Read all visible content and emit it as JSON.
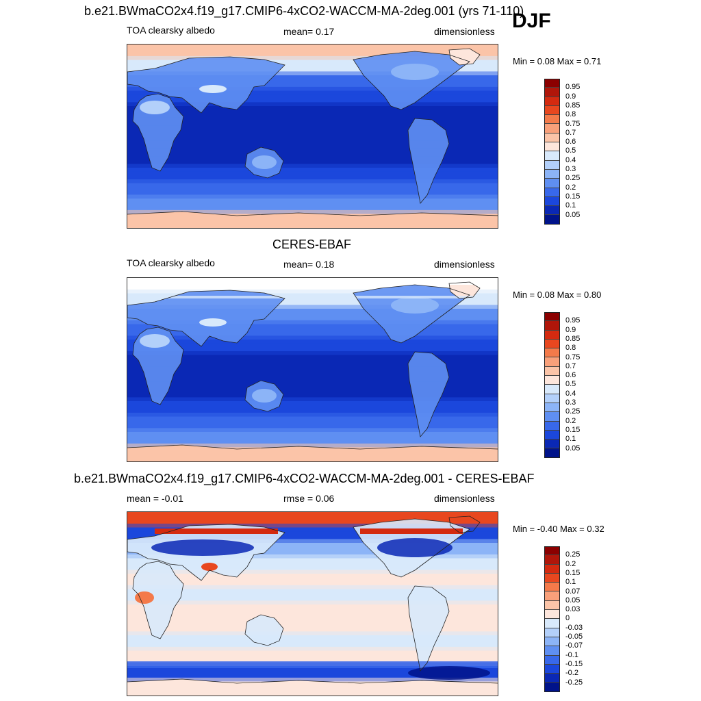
{
  "season": "DJF",
  "panels": [
    {
      "title": "b.e21.BWmaCO2x4.f19_g17.CMIP6-4xCO2-WACCM-MA-2deg.001 (yrs 71-110)",
      "left_label": "TOA clearsky albedo",
      "center_label": "mean=   0.17",
      "right_label": "dimensionless",
      "minmax": "Min =   0.08 Max =   0.71",
      "colorbar": {
        "labels": [
          "0.95",
          "0.9",
          "0.85",
          "0.8",
          "0.75",
          "0.7",
          "0.6",
          "0.5",
          "0.4",
          "0.3",
          "0.25",
          "0.2",
          "0.15",
          "0.1",
          "0.05"
        ],
        "colors": [
          "#8b0000",
          "#b0160a",
          "#d42a10",
          "#e8471f",
          "#f47a4a",
          "#f9a07a",
          "#fbc4a8",
          "#fde6dc",
          "#d8e9fb",
          "#b3d0fa",
          "#8cb4f7",
          "#5f8ff2",
          "#3868ea",
          "#1b47dc",
          "#0a28b5",
          "#00138a"
        ]
      },
      "map": {
        "mean": 0.17,
        "style": "model",
        "zonal_colors": [
          "#fbc4a8",
          "#d8e9fb",
          "#3868ea",
          "#1b47dc",
          "#0a28b5",
          "#0a28b5",
          "#0a28b5",
          "#0a28b5",
          "#1b47dc",
          "#3868ea",
          "#5f8ff2",
          "#fbc4a8"
        ]
      }
    },
    {
      "title": "CERES-EBAF",
      "left_label": "TOA clearsky albedo",
      "center_label": "mean=   0.18",
      "right_label": "dimensionless",
      "minmax": "Min =   0.08 Max =   0.80",
      "colorbar": {
        "labels": [
          "0.95",
          "0.9",
          "0.85",
          "0.8",
          "0.75",
          "0.7",
          "0.6",
          "0.5",
          "0.4",
          "0.3",
          "0.25",
          "0.2",
          "0.15",
          "0.1",
          "0.05"
        ],
        "colors": [
          "#8b0000",
          "#b0160a",
          "#d42a10",
          "#e8471f",
          "#f47a4a",
          "#f9a07a",
          "#fbc4a8",
          "#fde6dc",
          "#d8e9fb",
          "#b3d0fa",
          "#8cb4f7",
          "#5f8ff2",
          "#3868ea",
          "#1b47dc",
          "#0a28b5",
          "#00138a"
        ]
      },
      "map": {
        "mean": 0.18,
        "style": "obs",
        "zonal_colors": [
          "#ffffff",
          "#d8e9fb",
          "#5f8ff2",
          "#3868ea",
          "#1b47dc",
          "#0a28b5",
          "#0a28b5",
          "#0a28b5",
          "#1b47dc",
          "#3868ea",
          "#5f8ff2",
          "#fbc4a8"
        ]
      }
    },
    {
      "title": "b.e21.BWmaCO2x4.f19_g17.CMIP6-4xCO2-WACCM-MA-2deg.001 - CERES-EBAF",
      "left_label": "mean =  -0.01",
      "center_label": "rmse =   0.06",
      "right_label": "dimensionless",
      "minmax": "Min =  -0.40 Max =   0.32",
      "colorbar": {
        "labels": [
          "0.25",
          "0.2",
          "0.15",
          "0.1",
          "0.07",
          "0.05",
          "0.03",
          "0",
          "-0.03",
          "-0.05",
          "-0.07",
          "-0.1",
          "-0.15",
          "-0.2",
          "-0.25"
        ],
        "colors": [
          "#8b0000",
          "#b0160a",
          "#d42a10",
          "#e8471f",
          "#f47a4a",
          "#f9a07a",
          "#fbc4a8",
          "#fde6dc",
          "#d8e9fb",
          "#b3d0fa",
          "#8cb4f7",
          "#5f8ff2",
          "#3868ea",
          "#1b47dc",
          "#0a28b5",
          "#00138a"
        ]
      },
      "map": {
        "mean": -0.01,
        "style": "diff",
        "zonal_colors": [
          "#e8471f",
          "#1b47dc",
          "#8cb4f7",
          "#d8e9fb",
          "#fde6dc",
          "#d8e9fb",
          "#fde6dc",
          "#fde6dc",
          "#d8e9fb",
          "#fde6dc",
          "#1b47dc",
          "#fde6dc"
        ]
      }
    }
  ]
}
